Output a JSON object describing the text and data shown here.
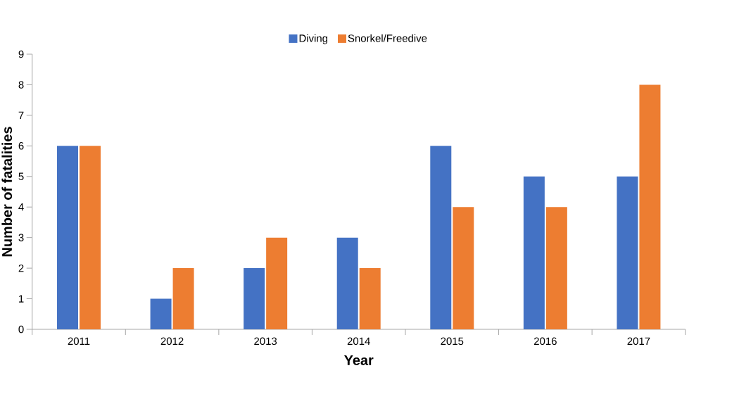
{
  "chart_data": {
    "type": "bar",
    "xlabel": "Year",
    "ylabel": "Number of fatalities",
    "categories": [
      "2011",
      "2012",
      "2013",
      "2014",
      "2015",
      "2016",
      "2017"
    ],
    "series": [
      {
        "name": "Diving",
        "color": "#4472c4",
        "values": [
          6,
          1,
          2,
          3,
          6,
          5,
          5
        ]
      },
      {
        "name": "Snorkel/Freedive",
        "color": "#ed7d31",
        "values": [
          6,
          2,
          3,
          2,
          4,
          4,
          8
        ]
      }
    ],
    "ylim": [
      0,
      9
    ],
    "yticks": [
      0,
      1,
      2,
      3,
      4,
      5,
      6,
      7,
      8,
      9
    ],
    "grid": false,
    "legend": "top"
  }
}
